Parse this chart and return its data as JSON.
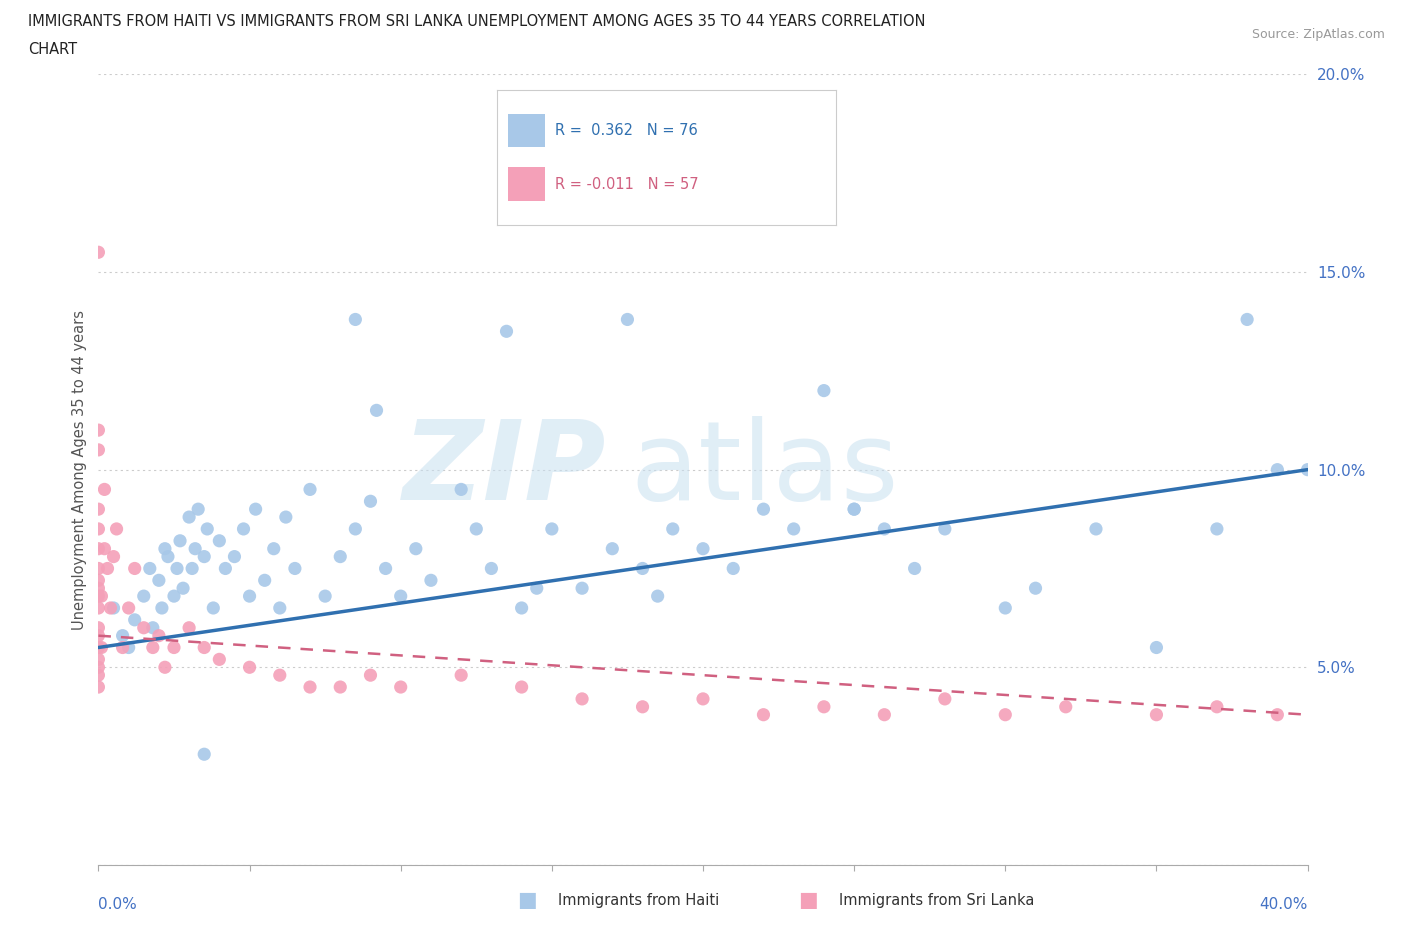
{
  "title_line1": "IMMIGRANTS FROM HAITI VS IMMIGRANTS FROM SRI LANKA UNEMPLOYMENT AMONG AGES 35 TO 44 YEARS CORRELATION",
  "title_line2": "CHART",
  "source": "Source: ZipAtlas.com",
  "ylabel": "Unemployment Among Ages 35 to 44 years",
  "haiti_R": 0.362,
  "haiti_N": 76,
  "srilanka_R": -0.011,
  "srilanka_N": 57,
  "haiti_color": "#a8c8e8",
  "haiti_line_color": "#3070b0",
  "srilanka_color": "#f4a0b8",
  "srilanka_line_color": "#d06080",
  "background_color": "#ffffff",
  "haiti_x": [
    0.5,
    0.8,
    1.0,
    1.2,
    1.5,
    1.7,
    1.8,
    2.0,
    2.1,
    2.2,
    2.3,
    2.5,
    2.6,
    2.7,
    2.8,
    3.0,
    3.1,
    3.2,
    3.3,
    3.5,
    3.6,
    3.8,
    4.0,
    4.2,
    4.5,
    4.8,
    5.0,
    5.2,
    5.5,
    5.8,
    6.0,
    6.2,
    6.5,
    7.0,
    7.5,
    8.0,
    8.5,
    9.0,
    9.5,
    10.0,
    10.5,
    11.0,
    12.0,
    12.5,
    13.0,
    14.0,
    14.5,
    15.0,
    16.0,
    17.0,
    18.0,
    19.0,
    20.0,
    21.0,
    22.0,
    23.0,
    24.0,
    25.0,
    26.0,
    27.0,
    28.0,
    30.0,
    31.0,
    33.0,
    35.0,
    37.0,
    39.0,
    8.5,
    13.5,
    17.5,
    25.0,
    38.0,
    40.0,
    9.2,
    3.5,
    18.5
  ],
  "haiti_y": [
    6.5,
    5.8,
    5.5,
    6.2,
    6.8,
    7.5,
    6.0,
    7.2,
    6.5,
    8.0,
    7.8,
    6.8,
    7.5,
    8.2,
    7.0,
    8.8,
    7.5,
    8.0,
    9.0,
    7.8,
    8.5,
    6.5,
    8.2,
    7.5,
    7.8,
    8.5,
    6.8,
    9.0,
    7.2,
    8.0,
    6.5,
    8.8,
    7.5,
    9.5,
    6.8,
    7.8,
    8.5,
    9.2,
    7.5,
    6.8,
    8.0,
    7.2,
    9.5,
    8.5,
    7.5,
    6.5,
    7.0,
    8.5,
    7.0,
    8.0,
    7.5,
    8.5,
    8.0,
    7.5,
    9.0,
    8.5,
    12.0,
    9.0,
    8.5,
    7.5,
    8.5,
    6.5,
    7.0,
    8.5,
    5.5,
    8.5,
    10.0,
    13.8,
    13.5,
    13.8,
    9.0,
    13.8,
    10.0,
    11.5,
    2.8,
    6.8
  ],
  "srilanka_x": [
    0.0,
    0.0,
    0.0,
    0.0,
    0.0,
    0.0,
    0.0,
    0.0,
    0.0,
    0.0,
    0.0,
    0.0,
    0.0,
    0.0,
    0.0,
    0.1,
    0.1,
    0.2,
    0.2,
    0.3,
    0.4,
    0.5,
    0.6,
    0.8,
    1.0,
    1.2,
    1.5,
    1.8,
    2.0,
    2.2,
    2.5,
    3.0,
    3.5,
    4.0,
    5.0,
    6.0,
    7.0,
    8.0,
    9.0,
    10.0,
    12.0,
    14.0,
    16.0,
    18.0,
    20.0,
    22.0,
    24.0,
    26.0,
    28.0,
    30.0,
    32.0,
    35.0,
    37.0,
    39.0,
    0.0,
    0.0,
    0.0
  ],
  "srilanka_y": [
    4.5,
    5.0,
    5.5,
    6.0,
    6.5,
    7.0,
    7.5,
    8.0,
    8.5,
    9.0,
    5.8,
    6.8,
    5.2,
    4.8,
    7.2,
    5.5,
    6.8,
    8.0,
    9.5,
    7.5,
    6.5,
    7.8,
    8.5,
    5.5,
    6.5,
    7.5,
    6.0,
    5.5,
    5.8,
    5.0,
    5.5,
    6.0,
    5.5,
    5.2,
    5.0,
    4.8,
    4.5,
    4.5,
    4.8,
    4.5,
    4.8,
    4.5,
    4.2,
    4.0,
    4.2,
    3.8,
    4.0,
    3.8,
    4.2,
    3.8,
    4.0,
    3.8,
    4.0,
    3.8,
    11.0,
    15.5,
    10.5
  ],
  "haiti_fit_x": [
    0.0,
    40.0
  ],
  "haiti_fit_y": [
    5.5,
    10.0
  ],
  "srilanka_fit_x": [
    0.0,
    40.0
  ],
  "srilanka_fit_y": [
    5.8,
    3.8
  ],
  "xlim": [
    0,
    40
  ],
  "ylim": [
    0,
    20
  ],
  "yticks": [
    0,
    5,
    10,
    15,
    20
  ],
  "ytick_labels": [
    "",
    "5.0%",
    "10.0%",
    "15.0%",
    "20.0%"
  ],
  "xtick_left_label": "0.0%",
  "xtick_right_label": "40.0%",
  "legend_haiti_label": "R =  0.362   N = 76",
  "legend_srilanka_label": "R = -0.011   N = 57",
  "bottom_legend_haiti": "Immigrants from Haiti",
  "bottom_legend_srilanka": "Immigrants from Sri Lanka",
  "watermark_zip": "ZIP",
  "watermark_atlas": "atlas"
}
